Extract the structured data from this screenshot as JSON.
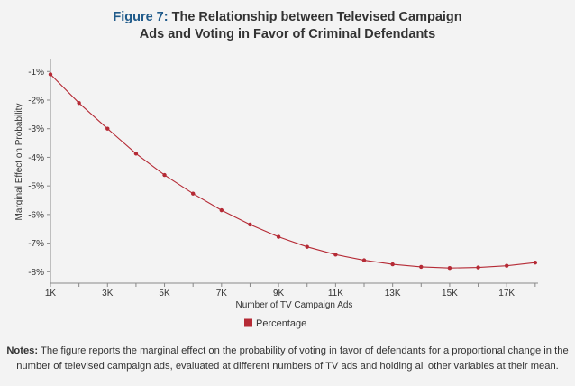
{
  "figure": {
    "label": "Figure 7:",
    "title_line1": "The Relationship between Televised Campaign",
    "title_line2": "Ads and Voting in Favor of Criminal Defendants"
  },
  "notes": {
    "label": "Notes:",
    "text": "The figure reports the marginal effect on the probability of voting in favor of defendants for a proportional change in the number of televised campaign ads, evaluated at different numbers of TV ads and holding all other variables at their mean."
  },
  "chart_data": {
    "type": "line",
    "xlabel": "Number of TV Campaign Ads",
    "ylabel": "Marginal Effect on Probability",
    "x_ticks": [
      {
        "value": 1000,
        "label": "1K"
      },
      {
        "value": 3000,
        "label": "3K"
      },
      {
        "value": 5000,
        "label": "5K"
      },
      {
        "value": 7000,
        "label": "7K"
      },
      {
        "value": 9000,
        "label": "9K"
      },
      {
        "value": 11000,
        "label": "11K"
      },
      {
        "value": 13000,
        "label": "13K"
      },
      {
        "value": 15000,
        "label": "15K"
      },
      {
        "value": 17000,
        "label": "17K"
      }
    ],
    "y_ticks": [
      {
        "value": -1,
        "label": "-1%"
      },
      {
        "value": -2,
        "label": "-2%"
      },
      {
        "value": -3,
        "label": "-3%"
      },
      {
        "value": -4,
        "label": "-4%"
      },
      {
        "value": -5,
        "label": "-5%"
      },
      {
        "value": -6,
        "label": "-6%"
      },
      {
        "value": -7,
        "label": "-7%"
      },
      {
        "value": -8,
        "label": "-8%"
      }
    ],
    "xlim": [
      1000,
      18100
    ],
    "ylim": [
      -8.4,
      -0.55
    ],
    "grid": false,
    "legend_position": "bottom-center",
    "series": [
      {
        "name": "Percentage",
        "color": "#b52a35",
        "x": [
          1000,
          2000,
          3000,
          4000,
          5000,
          6000,
          7000,
          8000,
          9000,
          10000,
          11000,
          12000,
          13000,
          14000,
          15000,
          16000,
          17000,
          18000
        ],
        "y": [
          -1.1,
          -2.1,
          -3.0,
          -3.87,
          -4.62,
          -5.27,
          -5.85,
          -6.35,
          -6.78,
          -7.13,
          -7.4,
          -7.6,
          -7.74,
          -7.83,
          -7.87,
          -7.85,
          -7.79,
          -7.68
        ]
      }
    ]
  }
}
